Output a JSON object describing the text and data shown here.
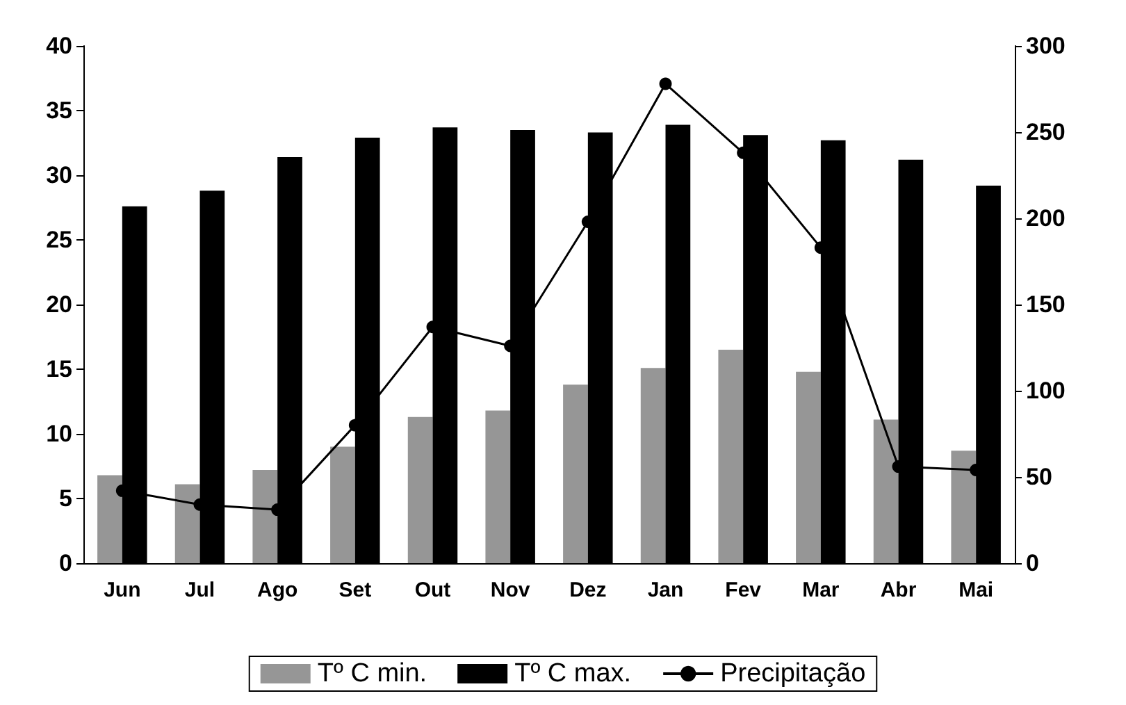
{
  "chart_data": {
    "type": "bar",
    "categories": [
      "Jun",
      "Jul",
      "Ago",
      "Set",
      "Out",
      "Nov",
      "Dez",
      "Jan",
      "Fev",
      "Mar",
      "Abr",
      "Mai"
    ],
    "series": [
      {
        "name": "Tº C min.",
        "color": "#969696",
        "values": [
          6.8,
          6.1,
          7.2,
          9.0,
          11.3,
          11.8,
          13.8,
          15.1,
          16.5,
          14.8,
          11.1,
          8.7
        ]
      },
      {
        "name": "Tº C max.",
        "color": "#000000",
        "values": [
          27.6,
          28.8,
          31.4,
          32.9,
          33.7,
          33.5,
          33.3,
          33.9,
          33.1,
          32.7,
          31.2,
          29.2
        ]
      },
      {
        "name": "Precipitação",
        "type": "line",
        "axis": "y2",
        "color": "#000000",
        "values": [
          42,
          34,
          31,
          80,
          137,
          126,
          198,
          278,
          238,
          183,
          56,
          54
        ]
      }
    ],
    "ylim": [
      0,
      40
    ],
    "yticks": [
      0,
      5,
      10,
      15,
      20,
      25,
      30,
      35,
      40
    ],
    "y2lim": [
      0,
      300
    ],
    "y2ticks": [
      0,
      50,
      100,
      150,
      200,
      250,
      300
    ],
    "grid": false,
    "legend": "bottom",
    "marker": "circle",
    "line_style": "solid"
  }
}
